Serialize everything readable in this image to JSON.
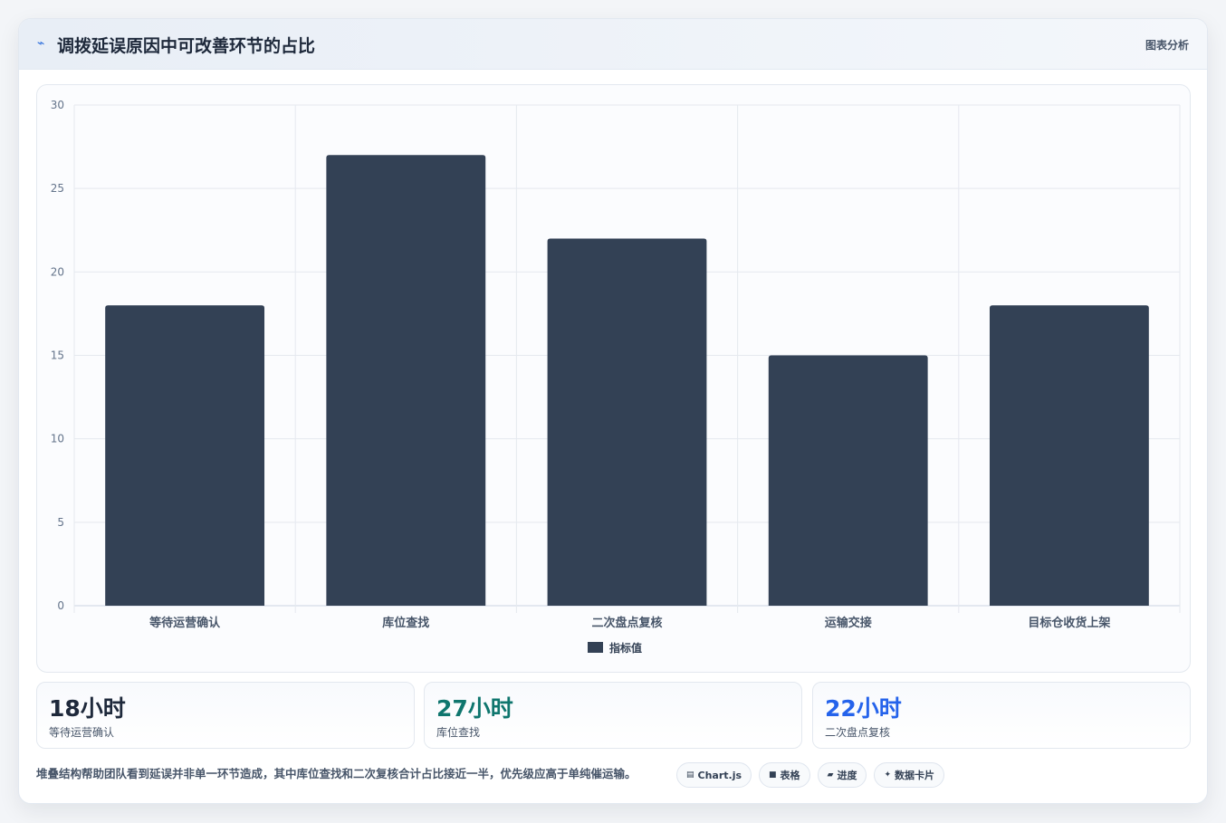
{
  "header": {
    "icon": "trend-icon",
    "title": "调拨延误原因中可改善环节的占比",
    "link_label": "图表分析"
  },
  "chart_data": {
    "type": "bar",
    "categories": [
      "等待运营确认",
      "库位查找",
      "二次盘点复核",
      "运输交接",
      "目标仓收货上架"
    ],
    "series": [
      {
        "name": "指标值",
        "values": [
          18,
          27,
          22,
          15,
          18
        ],
        "color": "#334155"
      }
    ],
    "ylim": [
      0,
      30
    ],
    "yticks": [
      0,
      5,
      10,
      15,
      20,
      25,
      30
    ],
    "grid": true,
    "legend_position": "bottom-center"
  },
  "stats": [
    {
      "value": "18小时",
      "label": "等待运营确认",
      "color": "#1e293b"
    },
    {
      "value": "27小时",
      "label": "库位查找",
      "color": "#0f766e"
    },
    {
      "value": "22小时",
      "label": "二次盘点复核",
      "color": "#2563eb"
    }
  ],
  "footnote": "堆叠结构帮助团队看到延误并非单一环节造成，其中库位查找和二次复核合计占比接近一半，优先级应高于单纯催运输。",
  "chips": [
    {
      "icon": "chart-icon",
      "glyph": "▤",
      "label": "Chart.js"
    },
    {
      "icon": "table-icon",
      "glyph": "■",
      "label": "表格"
    },
    {
      "icon": "progress-icon",
      "glyph": "▰",
      "label": "进度"
    },
    {
      "icon": "sparkle-icon",
      "glyph": "✦",
      "label": "数据卡片"
    }
  ]
}
